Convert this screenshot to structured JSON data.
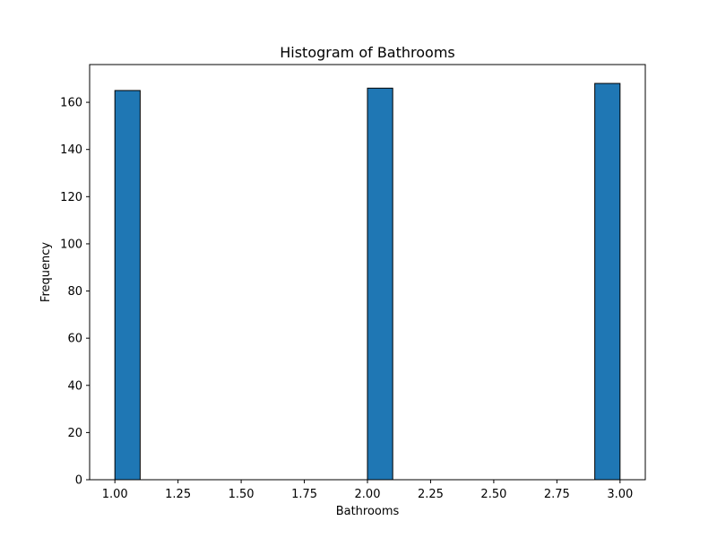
{
  "chart_data": {
    "type": "bar",
    "title": "Histogram of Bathrooms",
    "xlabel": "Bathrooms",
    "ylabel": "Frequency",
    "xlim": [
      0.9,
      3.1
    ],
    "ylim": [
      0,
      176
    ],
    "xticks": [
      1.0,
      1.25,
      1.5,
      1.75,
      2.0,
      2.25,
      2.5,
      2.75,
      3.0
    ],
    "xtick_labels": [
      "1.00",
      "1.25",
      "1.50",
      "1.75",
      "2.00",
      "2.25",
      "2.50",
      "2.75",
      "3.00"
    ],
    "yticks": [
      0,
      20,
      40,
      60,
      80,
      100,
      120,
      140,
      160
    ],
    "ytick_labels": [
      "0",
      "20",
      "40",
      "60",
      "80",
      "100",
      "120",
      "140",
      "160"
    ],
    "bins": [
      {
        "x0": 1.0,
        "x1": 1.1,
        "count": 165
      },
      {
        "x0": 2.0,
        "x1": 2.1,
        "count": 166
      },
      {
        "x0": 2.9,
        "x1": 3.0,
        "count": 168
      }
    ],
    "bar_color": "#1f77b4",
    "edge_color": "#000000",
    "grid": false
  }
}
